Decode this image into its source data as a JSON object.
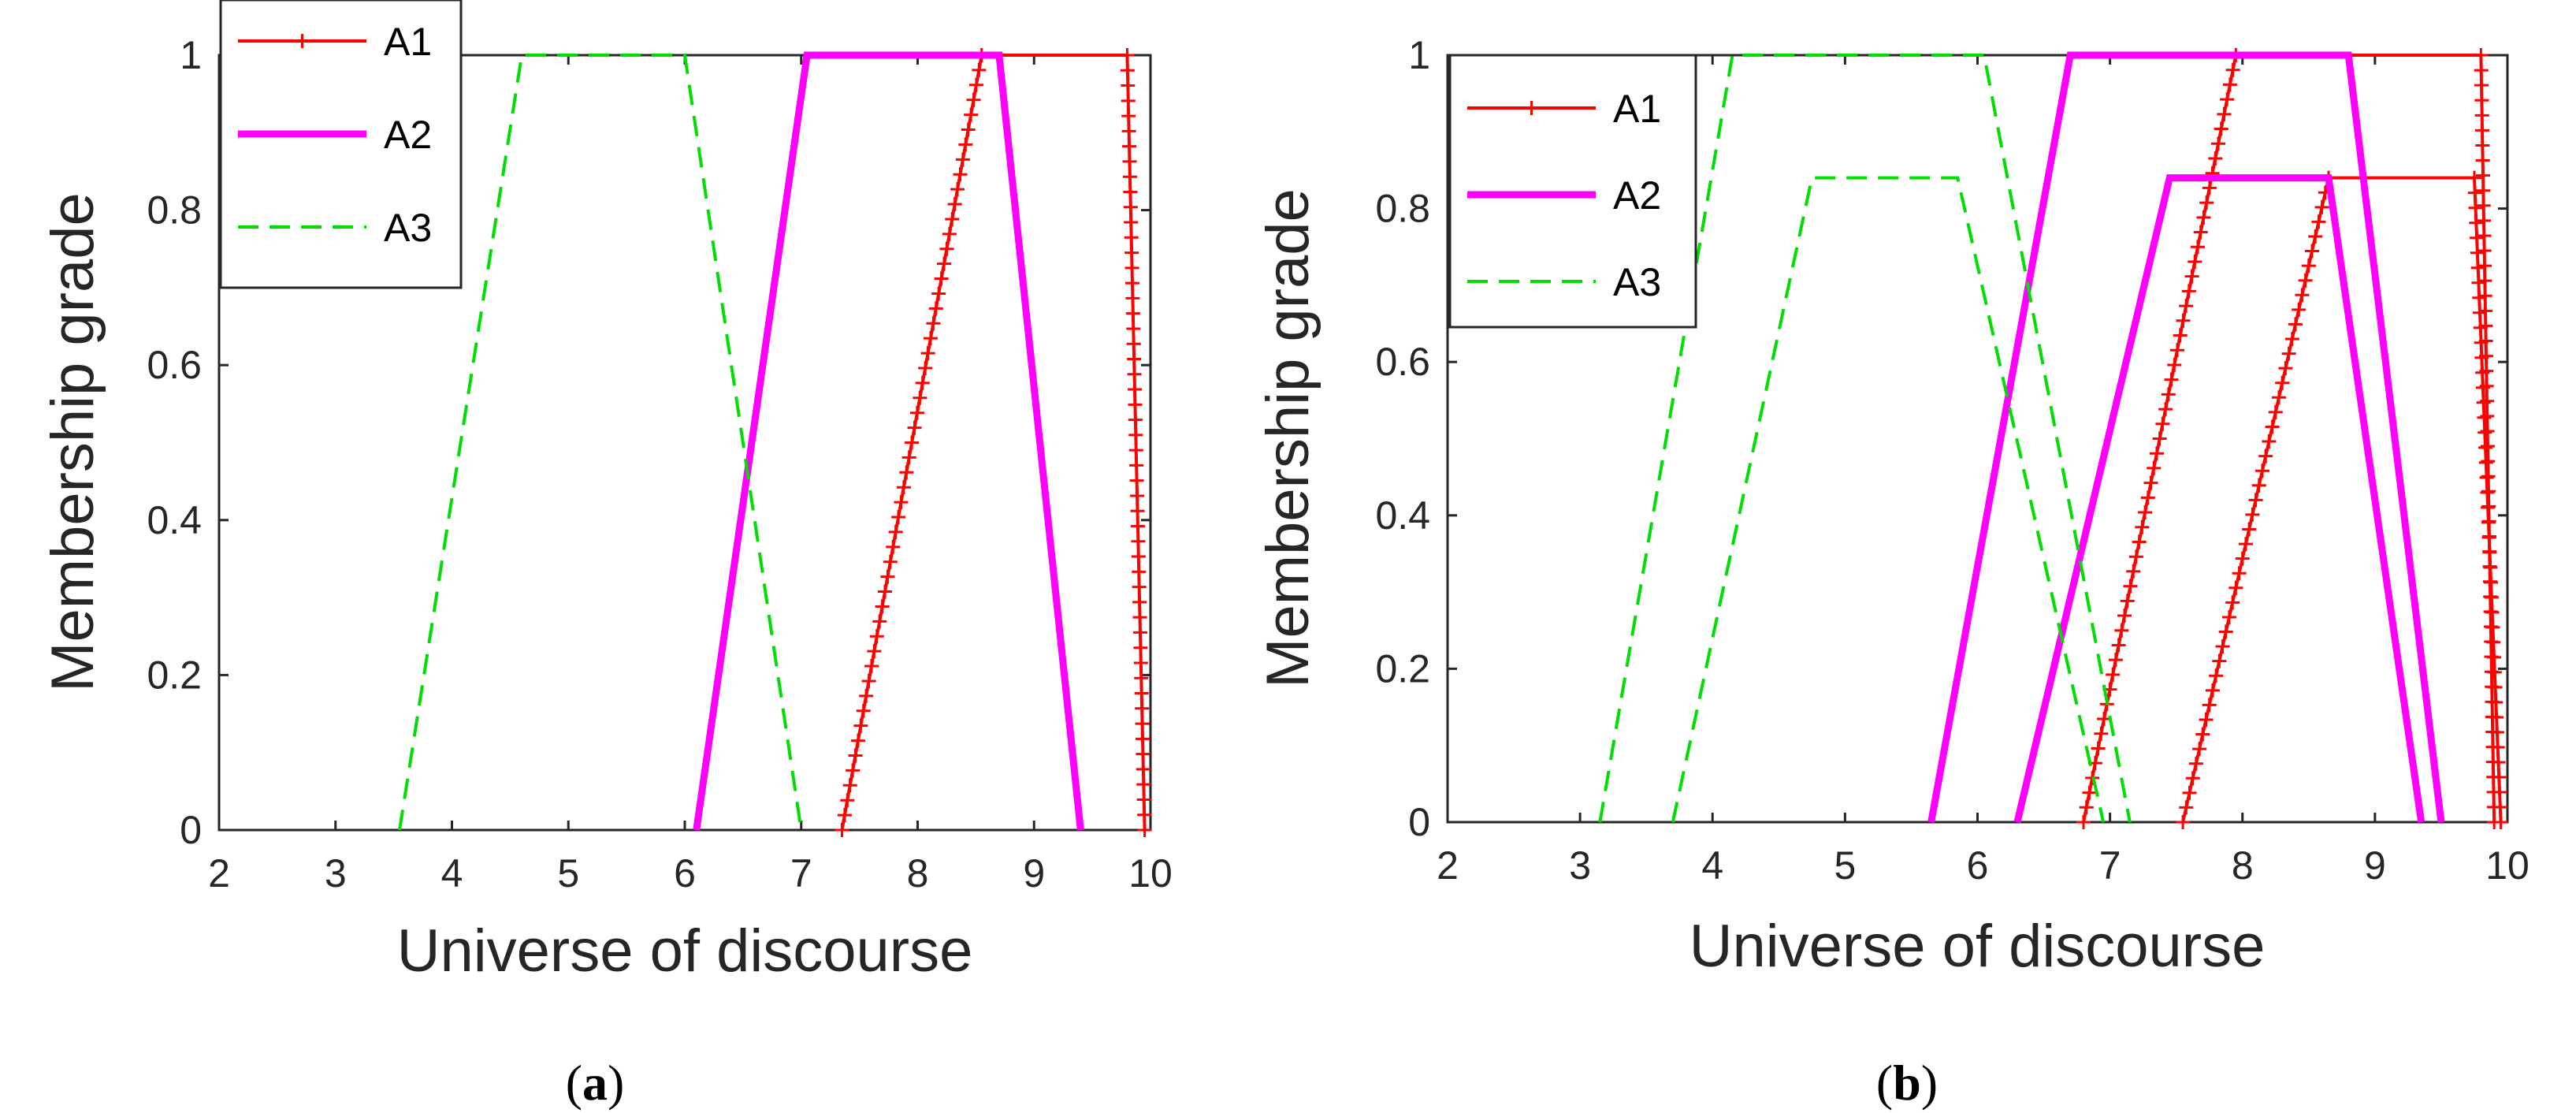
{
  "chart_data": [
    {
      "type": "line",
      "caption_letter": "a",
      "xlabel": "Universe of discourse",
      "ylabel": "Membership grade",
      "xlim": [
        2,
        10
      ],
      "ylim": [
        0,
        1
      ],
      "x_ticks": [
        2,
        3,
        4,
        5,
        6,
        7,
        8,
        9,
        10
      ],
      "y_ticks": [
        0,
        0.2,
        0.4,
        0.6,
        0.8,
        1
      ],
      "x_tick_labels": [
        "2",
        "3",
        "4",
        "5",
        "6",
        "7",
        "8",
        "9",
        "10"
      ],
      "y_tick_labels": [
        "0",
        "0.2",
        "0.4",
        "0.6",
        "0.8",
        "1"
      ],
      "grid": false,
      "legend_position": "top-left",
      "series": [
        {
          "name": "A1",
          "color": "#ff0000",
          "style": "solid-plus-markers",
          "lines": [
            [
              [
                7.35,
                0
              ],
              [
                8.55,
                1
              ],
              [
                9.8,
                1
              ],
              [
                9.95,
                0
              ]
            ]
          ]
        },
        {
          "name": "A2",
          "color": "#ff00ff",
          "style": "thick-solid",
          "lines": [
            [
              [
                6.1,
                0
              ],
              [
                7.05,
                1
              ],
              [
                8.7,
                1
              ],
              [
                9.4,
                0
              ]
            ]
          ]
        },
        {
          "name": "A3",
          "color": "#00dd00",
          "style": "dashed",
          "lines": [
            [
              [
                3.55,
                0
              ],
              [
                4.6,
                1
              ],
              [
                6.0,
                1
              ],
              [
                7.0,
                0
              ]
            ]
          ]
        }
      ]
    },
    {
      "type": "line",
      "caption_letter": "b",
      "xlabel": "Universe of discourse",
      "ylabel": "Membership grade",
      "xlim": [
        2,
        10
      ],
      "ylim": [
        0,
        1
      ],
      "x_ticks": [
        2,
        3,
        4,
        5,
        6,
        7,
        8,
        9,
        10
      ],
      "y_ticks": [
        0,
        0.2,
        0.4,
        0.6,
        0.8,
        1
      ],
      "x_tick_labels": [
        "2",
        "3",
        "4",
        "5",
        "6",
        "7",
        "8",
        "9",
        "10"
      ],
      "y_tick_labels": [
        "0",
        "0.2",
        "0.4",
        "0.6",
        "0.8",
        "1"
      ],
      "grid": false,
      "legend_position": "top-left",
      "series": [
        {
          "name": "A1",
          "color": "#ff0000",
          "style": "solid-plus-markers",
          "lines": [
            [
              [
                6.8,
                0
              ],
              [
                7.95,
                1
              ],
              [
                9.8,
                1
              ],
              [
                9.9,
                0
              ]
            ],
            [
              [
                7.55,
                0
              ],
              [
                8.65,
                0.84
              ],
              [
                9.75,
                0.84
              ],
              [
                9.95,
                0
              ]
            ]
          ]
        },
        {
          "name": "A2",
          "color": "#ff00ff",
          "style": "thick-solid",
          "lines": [
            [
              [
                5.65,
                0
              ],
              [
                6.7,
                1
              ],
              [
                8.8,
                1
              ],
              [
                9.5,
                0
              ]
            ],
            [
              [
                6.3,
                0
              ],
              [
                7.45,
                0.84
              ],
              [
                8.65,
                0.84
              ],
              [
                9.35,
                0
              ]
            ]
          ]
        },
        {
          "name": "A3",
          "color": "#00dd00",
          "style": "dashed",
          "lines": [
            [
              [
                3.15,
                0
              ],
              [
                4.15,
                1
              ],
              [
                6.05,
                1
              ],
              [
                7.15,
                0
              ]
            ],
            [
              [
                3.7,
                0
              ],
              [
                4.75,
                0.84
              ],
              [
                5.85,
                0.84
              ],
              [
                6.95,
                0
              ]
            ]
          ]
        }
      ]
    }
  ]
}
